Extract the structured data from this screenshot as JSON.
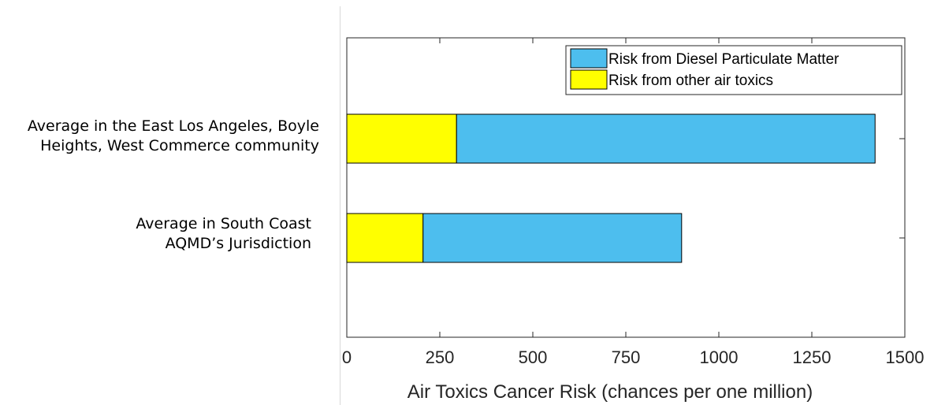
{
  "chart_data": {
    "type": "bar",
    "orientation": "horizontal",
    "stacked": true,
    "categories": [
      "Average in the East Los Angeles, Boyle\nHeights, West Commerce community",
      "Average in South Coast\nAQMD’s Jurisdiction"
    ],
    "series": [
      {
        "name": "Risk from other air toxics",
        "values": [
          295,
          205
        ],
        "color": "#ffff00"
      },
      {
        "name": "Risk from Diesel Particulate Matter",
        "values": [
          1125,
          695
        ],
        "color": "#4dbeee"
      }
    ],
    "xlabel": "Air Toxics Cancer Risk (chances per one million)",
    "ylabel": "",
    "xlim": [
      0,
      1500
    ],
    "xticks": [
      "0",
      "250",
      "500",
      "750",
      "1000",
      "1250",
      "1500"
    ],
    "legend_order": [
      "Risk from Diesel Particulate Matter",
      "Risk from other air toxics"
    ],
    "legend_position": "top-right",
    "grid": false
  }
}
